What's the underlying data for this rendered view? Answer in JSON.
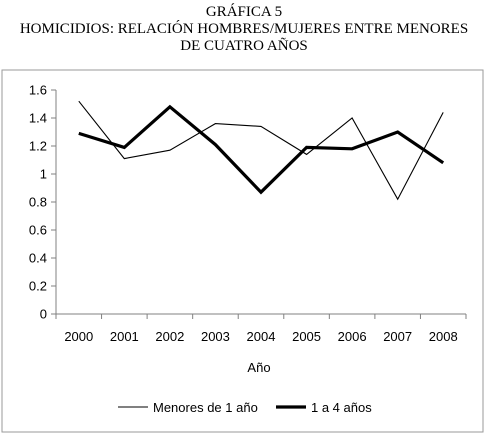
{
  "chart_data": {
    "type": "line",
    "title_lines": [
      "GRÁFICA 5",
      "HOMICIDIOS: RELACIÓN HOMBRES/MUJERES ENTRE MENORES",
      "DE CUATRO AÑOS"
    ],
    "xlabel": "Año",
    "ylabel": "",
    "categories": [
      "2000",
      "2001",
      "2002",
      "2003",
      "2004",
      "2005",
      "2006",
      "2007",
      "2008"
    ],
    "ylim": [
      0,
      1.6
    ],
    "yticks": [
      "0",
      "0.2",
      "0.4",
      "0.6",
      "0.8",
      "1",
      "1.2",
      "1.4",
      "1.6"
    ],
    "grid": false,
    "legend_position": "bottom",
    "series": [
      {
        "name": "Menores de 1 año",
        "values": [
          1.52,
          1.11,
          1.17,
          1.36,
          1.34,
          1.14,
          1.4,
          0.82,
          1.44
        ],
        "color": "#000000",
        "weight": "thin"
      },
      {
        "name": "1 a 4 años",
        "values": [
          1.29,
          1.19,
          1.48,
          1.21,
          0.87,
          1.19,
          1.18,
          1.3,
          1.08
        ],
        "color": "#000000",
        "weight": "thick"
      }
    ]
  }
}
